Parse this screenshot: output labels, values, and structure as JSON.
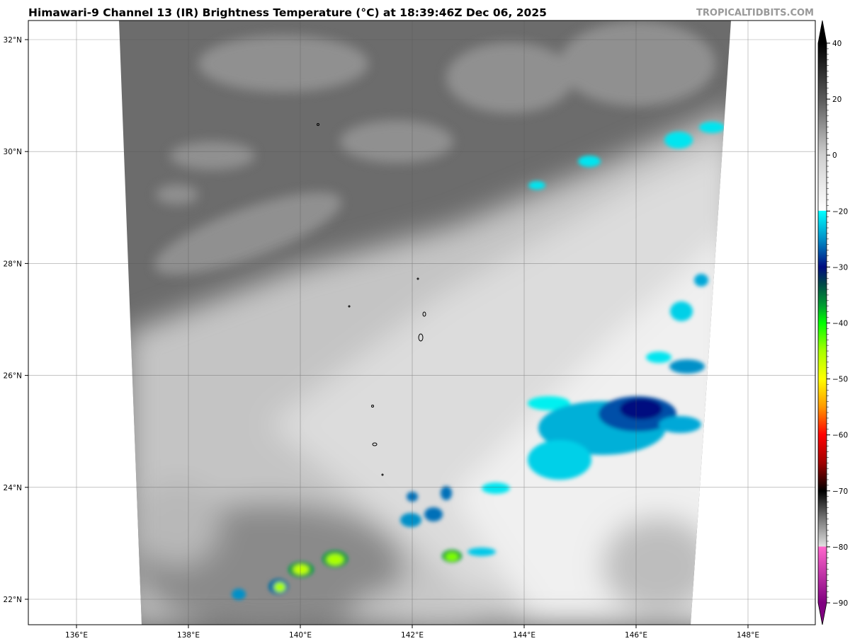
{
  "header": {
    "title": "Himawari-9 Channel 13 (IR) Brightness Temperature (°C) at 18:39:46Z Dec 06, 2025",
    "brand": "TROPICALTIDBITS.COM"
  },
  "map": {
    "latitude_labels": [
      "32°N",
      "30°N",
      "28°N",
      "26°N",
      "24°N",
      "22°N"
    ],
    "longitude_labels": [
      "136°E",
      "138°E",
      "140°E",
      "142°E",
      "144°E",
      "146°E",
      "148°E"
    ],
    "gridlines": true
  },
  "colorbar": {
    "unit": "°C",
    "ticks": [
      "40",
      "20",
      "0",
      "−20",
      "−30",
      "−40",
      "−50",
      "−60",
      "−70",
      "−80",
      "−90"
    ],
    "colors": {
      "warm": "#000000",
      "mid_gray": "#808080",
      "cold_start": "#00ffff",
      "navy": "#001080",
      "green": "#00ff00",
      "yellow": "#ffff00",
      "red": "#ff0000",
      "pink": "#ff66cc",
      "purple": "#800080"
    }
  }
}
